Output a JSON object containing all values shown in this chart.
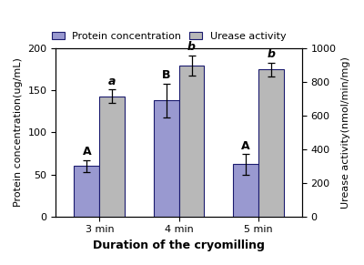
{
  "categories": [
    "3 min",
    "4 min",
    "5 min"
  ],
  "blue_values": [
    60,
    138,
    62
  ],
  "gray_values": [
    715,
    900,
    875
  ],
  "blue_errors": [
    7,
    20,
    12
  ],
  "gray_errors": [
    40,
    60,
    40
  ],
  "blue_color": "#9999d0",
  "gray_color": "#b8b8b8",
  "blue_label": "Protein concentration",
  "gray_label": "Urease activity",
  "xlabel": "Duration of the cryomilling",
  "ylabel_left": "Protein concentration(ug/mL)",
  "ylabel_right": "Urease activity(nmol/min/mg)",
  "ylim_left": [
    0,
    200
  ],
  "ylim_right": [
    0,
    1000
  ],
  "yticks_left": [
    0,
    50,
    100,
    150,
    200
  ],
  "yticks_right": [
    0,
    200,
    400,
    600,
    800,
    1000
  ],
  "blue_letters": [
    "A",
    "B",
    "A"
  ],
  "gray_letters": [
    "a",
    "b",
    "b"
  ],
  "axis_fontsize": 8,
  "tick_fontsize": 8,
  "legend_fontsize": 8,
  "letter_fontsize": 9,
  "bar_width": 0.32,
  "edge_color": "#1a1a6e",
  "xlabel_fontsize": 9
}
